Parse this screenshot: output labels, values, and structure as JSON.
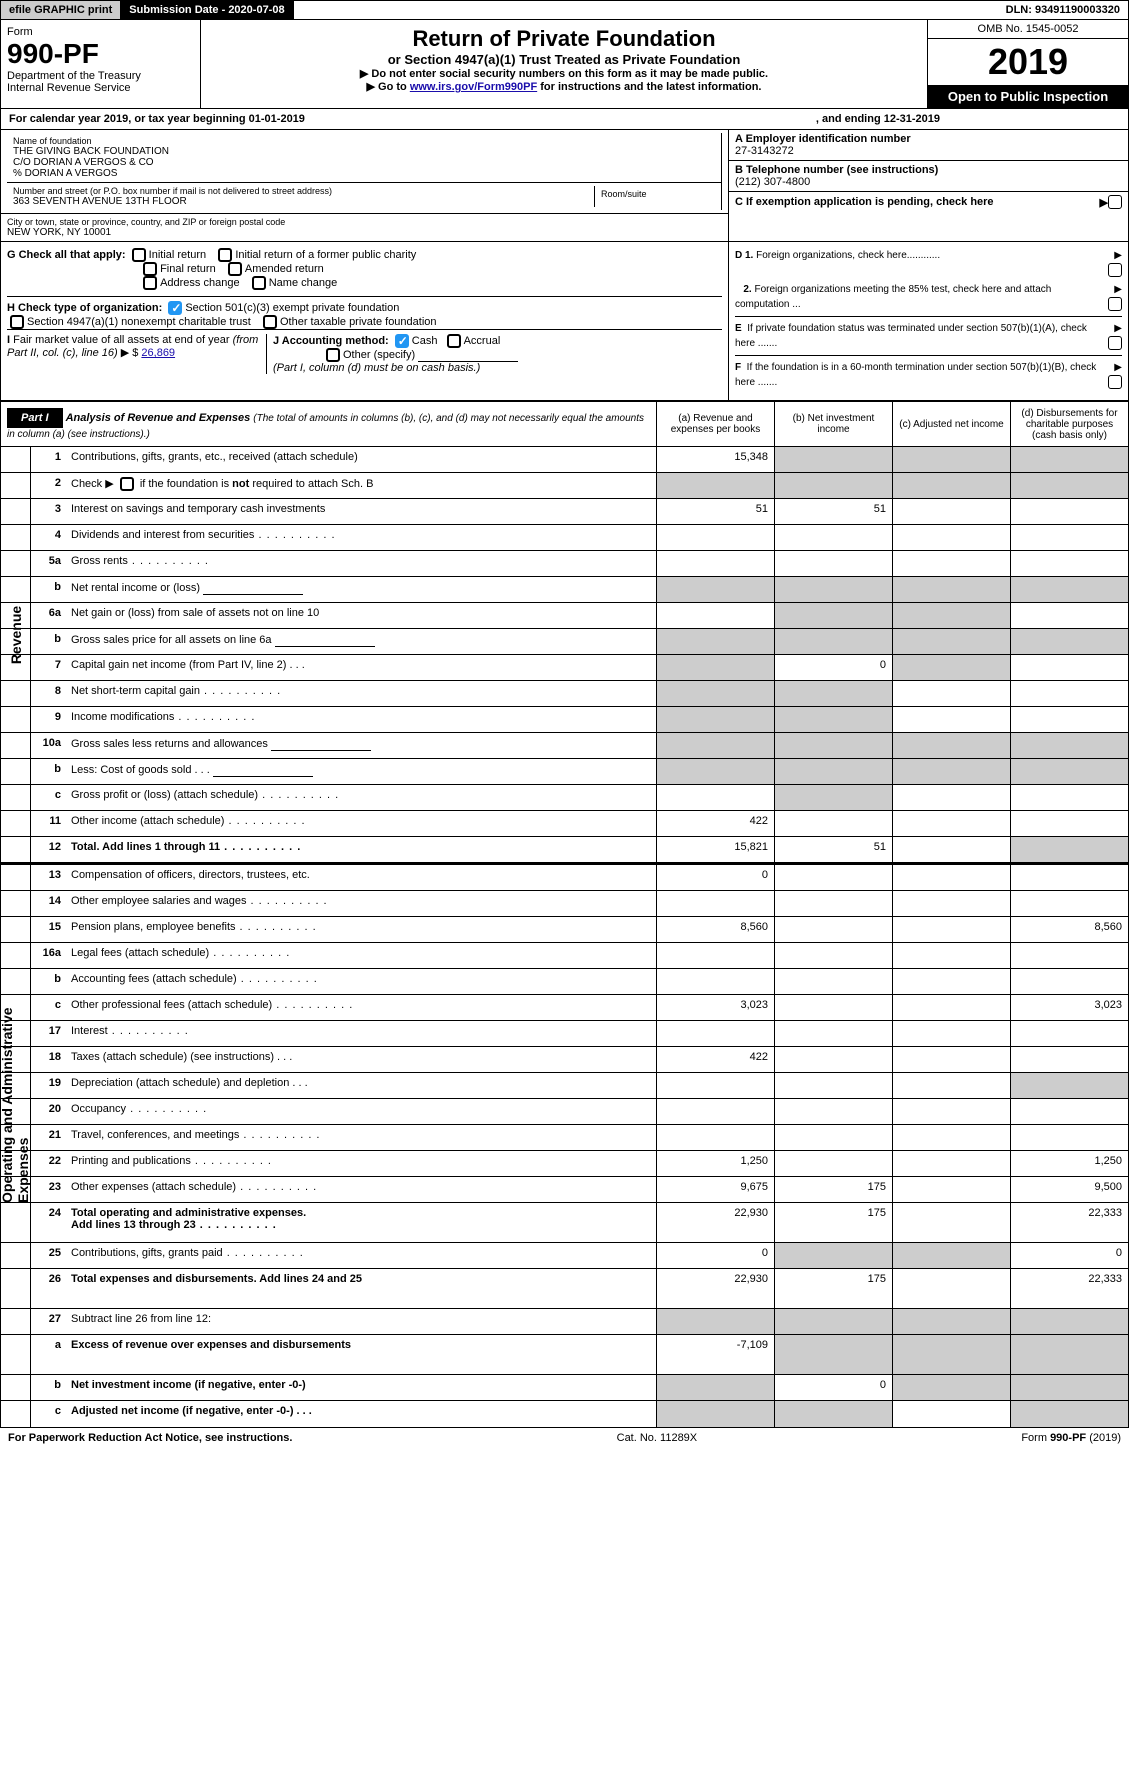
{
  "topbar": {
    "efile": "efile GRAPHIC print",
    "subdate_label": "Submission Date - 2020-07-08",
    "dln": "DLN: 93491190003320"
  },
  "header": {
    "form_label": "Form",
    "form_no": "990-PF",
    "dept": "Department of the Treasury",
    "irs": "Internal Revenue Service",
    "title": "Return of Private Foundation",
    "subtitle": "or Section 4947(a)(1) Trust Treated as Private Foundation",
    "note1": "▶ Do not enter social security numbers on this form as it may be made public.",
    "note2_pre": "▶ Go to ",
    "note2_link": "www.irs.gov/Form990PF",
    "note2_post": " for instructions and the latest information.",
    "omb": "OMB No. 1545-0052",
    "year": "2019",
    "open": "Open to Public Inspection"
  },
  "cal": {
    "pre": "For calendar year 2019, or tax year beginning 01-01-2019",
    "end": ", and ending 12-31-2019"
  },
  "entity": {
    "name_lbl": "Name of foundation",
    "name1": "THE GIVING BACK FOUNDATION",
    "name2": "C/O DORIAN A VERGOS & CO",
    "name3": "% DORIAN A VERGOS",
    "addr_lbl": "Number and street (or P.O. box number if mail is not delivered to street address)",
    "addr": "363 SEVENTH AVENUE 13TH FLOOR",
    "room_lbl": "Room/suite",
    "city_lbl": "City or town, state or province, country, and ZIP or foreign postal code",
    "city": "NEW YORK, NY  10001",
    "ein_lbl": "A Employer identification number",
    "ein": "27-3143272",
    "tel_lbl": "B Telephone number (see instructions)",
    "tel": "(212) 307-4800",
    "c_lbl": "C If exemption application is pending, check here"
  },
  "checks": {
    "g": "G Check all that apply:",
    "g1": "Initial return",
    "g2": "Initial return of a former public charity",
    "g3": "Final return",
    "g4": "Amended return",
    "g5": "Address change",
    "g6": "Name change",
    "h": "H Check type of organization:",
    "h1": "Section 501(c)(3) exempt private foundation",
    "h2": "Section 4947(a)(1) nonexempt charitable trust",
    "h3": "Other taxable private foundation",
    "i_pre": "I Fair market value of all assets at end of year (from Part II, col. (c), line 16) ▶ $ ",
    "i_val": "26,869",
    "j": "J Accounting method:",
    "j1": "Cash",
    "j2": "Accrual",
    "j3": "Other (specify)",
    "j_note": "(Part I, column (d) must be on cash basis.)",
    "d1": "D 1. Foreign organizations, check here............",
    "d2": "2. Foreign organizations meeting the 85% test, check here and attach computation ...",
    "e": "E  If private foundation status was terminated under section 507(b)(1)(A), check here .......",
    "f": "F  If the foundation is in a 60-month termination under section 507(b)(1)(B), check here ......."
  },
  "part1": {
    "label": "Part I",
    "title": "Analysis of Revenue and Expenses",
    "sub": "(The total of amounts in columns (b), (c), and (d) may not necessarily equal the amounts in column (a) (see instructions).)",
    "cols": {
      "a": "(a)   Revenue and expenses per books",
      "b": "(b)  Net investment income",
      "c": "(c)  Adjusted net income",
      "d": "(d)  Disbursements for charitable purposes (cash basis only)"
    }
  },
  "side": {
    "rev": "Revenue",
    "exp": "Operating and Administrative Expenses"
  },
  "rows": [
    {
      "n": "1",
      "t": "Contributions, gifts, grants, etc., received (attach schedule)",
      "a": "15,348",
      "shade": [
        "b",
        "c",
        "d"
      ]
    },
    {
      "n": "2",
      "t": "Check ▶ ☐ if the foundation is not required to attach Sch. B",
      "raw": true,
      "shade": [
        "a",
        "b",
        "c",
        "d"
      ]
    },
    {
      "n": "3",
      "t": "Interest on savings and temporary cash investments",
      "a": "51",
      "b": "51"
    },
    {
      "n": "4",
      "t": "Dividends and interest from securities",
      "dots": true
    },
    {
      "n": "5a",
      "t": "Gross rents",
      "dots": true
    },
    {
      "n": "b",
      "t": "Net rental income or (loss)",
      "inline": true,
      "shade": [
        "a",
        "b",
        "c",
        "d"
      ]
    },
    {
      "n": "6a",
      "t": "Net gain or (loss) from sale of assets not on line 10",
      "shade": [
        "b",
        "c"
      ]
    },
    {
      "n": "b",
      "t": "Gross sales price for all assets on line 6a",
      "inline": true,
      "shade": [
        "a",
        "b",
        "c",
        "d"
      ]
    },
    {
      "n": "7",
      "t": "Capital gain net income (from Part IV, line 2)",
      "dots3": true,
      "b": "0",
      "shade": [
        "a",
        "c"
      ]
    },
    {
      "n": "8",
      "t": "Net short-term capital gain",
      "dots": true,
      "shade": [
        "a",
        "b"
      ]
    },
    {
      "n": "9",
      "t": "Income modifications",
      "dots": true,
      "shade": [
        "a",
        "b"
      ]
    },
    {
      "n": "10a",
      "t": "Gross sales less returns and allowances",
      "inline": true,
      "shade": [
        "a",
        "b",
        "c",
        "d"
      ]
    },
    {
      "n": "b",
      "t": "Less: Cost of goods sold",
      "dots3": true,
      "inline": true,
      "shade": [
        "a",
        "b",
        "c",
        "d"
      ]
    },
    {
      "n": "c",
      "t": "Gross profit or (loss) (attach schedule)",
      "dots": true,
      "shade": [
        "b"
      ]
    },
    {
      "n": "11",
      "t": "Other income (attach schedule)",
      "dots": true,
      "a": "422"
    },
    {
      "n": "12",
      "t": "Total. Add lines 1 through 11",
      "bold": true,
      "dots": true,
      "a": "15,821",
      "b": "51",
      "shade": [
        "d"
      ]
    },
    {
      "n": "13",
      "t": "Compensation of officers, directors, trustees, etc.",
      "a": "0"
    },
    {
      "n": "14",
      "t": "Other employee salaries and wages",
      "dots": true
    },
    {
      "n": "15",
      "t": "Pension plans, employee benefits",
      "dots": true,
      "a": "8,560",
      "d": "8,560"
    },
    {
      "n": "16a",
      "t": "Legal fees (attach schedule)",
      "dots": true
    },
    {
      "n": "b",
      "t": "Accounting fees (attach schedule)",
      "dots": true
    },
    {
      "n": "c",
      "t": "Other professional fees (attach schedule)",
      "dots": true,
      "a": "3,023",
      "d": "3,023"
    },
    {
      "n": "17",
      "t": "Interest",
      "dots": true
    },
    {
      "n": "18",
      "t": "Taxes (attach schedule) (see instructions)",
      "dots3": true,
      "a": "422"
    },
    {
      "n": "19",
      "t": "Depreciation (attach schedule) and depletion",
      "dots3": true,
      "shade": [
        "d"
      ]
    },
    {
      "n": "20",
      "t": "Occupancy",
      "dots": true
    },
    {
      "n": "21",
      "t": "Travel, conferences, and meetings",
      "dots": true
    },
    {
      "n": "22",
      "t": "Printing and publications",
      "dots": true,
      "a": "1,250",
      "d": "1,250"
    },
    {
      "n": "23",
      "t": "Other expenses (attach schedule)",
      "dots": true,
      "a": "9,675",
      "b": "175",
      "d": "9,500"
    },
    {
      "n": "24",
      "t": "Total operating and administrative expenses. Add lines 13 through 23",
      "bold": true,
      "dots": true,
      "a": "22,930",
      "b": "175",
      "d": "22,333",
      "tall": true
    },
    {
      "n": "25",
      "t": "Contributions, gifts, grants paid",
      "dots": true,
      "a": "0",
      "shade": [
        "b",
        "c"
      ],
      "d": "0"
    },
    {
      "n": "26",
      "t": "Total expenses and disbursements. Add lines 24 and 25",
      "bold": true,
      "a": "22,930",
      "b": "175",
      "d": "22,333",
      "tall": true
    },
    {
      "n": "27",
      "t": "Subtract line 26 from line 12:",
      "shade": [
        "a",
        "b",
        "c",
        "d"
      ]
    },
    {
      "n": "a",
      "t": "Excess of revenue over expenses and disbursements",
      "bold": true,
      "a": "-7,109",
      "shade": [
        "b",
        "c",
        "d"
      ],
      "tall": true
    },
    {
      "n": "b",
      "t": "Net investment income (if negative, enter -0-)",
      "bold": true,
      "b": "0",
      "shade": [
        "a",
        "c",
        "d"
      ]
    },
    {
      "n": "c",
      "t": "Adjusted net income (if negative, enter -0-)",
      "bold": true,
      "dots3": true,
      "shade": [
        "a",
        "b",
        "d"
      ]
    }
  ],
  "footer": {
    "left": "For Paperwork Reduction Act Notice, see instructions.",
    "mid": "Cat. No. 11289X",
    "right": "Form 990-PF (2019)"
  }
}
